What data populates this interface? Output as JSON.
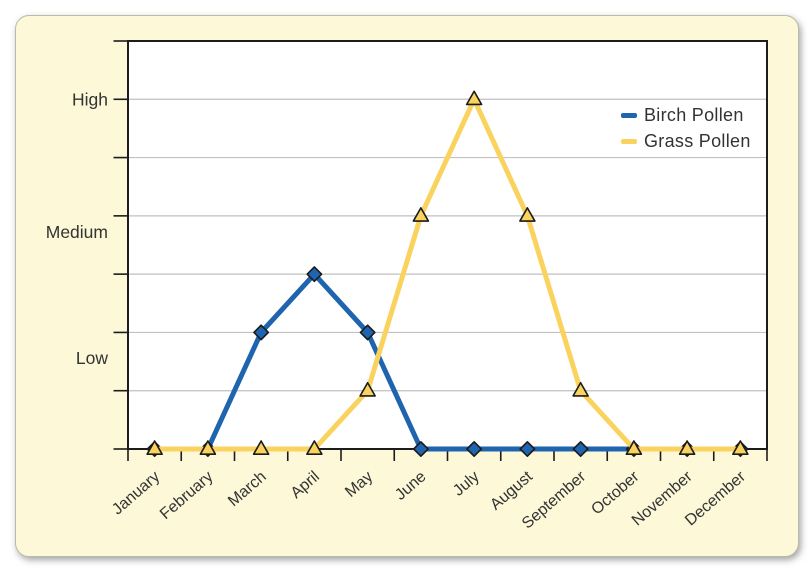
{
  "colors": {
    "page_background": "#FFFFFF",
    "card_background": "#FCF8D8",
    "plot_background": "#FFFFFF",
    "axis": "#1C1C1C",
    "gridline": "#C1C1C1",
    "marker_outline": "#1B1B1B",
    "label_text": "#333333",
    "birch_blue": "#1E64AE",
    "grass_yellow": "#FAD35F"
  },
  "chart_data": {
    "type": "line",
    "categories": [
      "January",
      "February",
      "March",
      "April",
      "May",
      "June",
      "July",
      "August",
      "September",
      "October",
      "November",
      "December"
    ],
    "series": [
      {
        "name": "Birch Pollen",
        "color": "#1E64AE",
        "marker": "diamond",
        "values": [
          0,
          0,
          2,
          3,
          2,
          0,
          0,
          0,
          0,
          0,
          0,
          0
        ]
      },
      {
        "name": "Grass Pollen",
        "color": "#FAD35F",
        "marker": "triangle",
        "values": [
          0,
          0,
          0,
          0,
          1,
          4,
          6,
          4,
          1,
          0,
          0,
          0
        ]
      }
    ],
    "y_axis": {
      "ylim": [
        0,
        7
      ],
      "gridline_levels": [
        1,
        2,
        3,
        4,
        5,
        6
      ],
      "labels": [
        {
          "text": "High",
          "level": 6.0
        },
        {
          "text": "Medium",
          "level": 3.72
        },
        {
          "text": "Low",
          "level": 1.56
        }
      ]
    },
    "x_axis": {
      "ticks_between_categories": true
    },
    "legend_position": "top-right",
    "grid": true
  }
}
